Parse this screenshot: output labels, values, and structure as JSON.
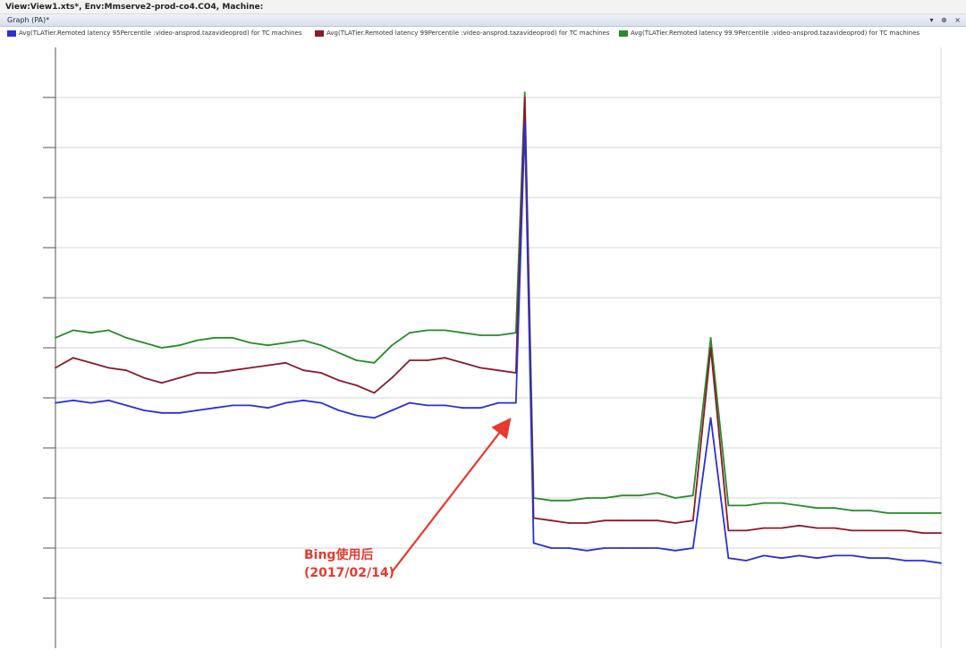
{
  "window": {
    "title": "View:View1.xts*,  Env:Mmserve2-prod-co4.CO4, Machine:",
    "panel_title": "Graph (PA)*",
    "panel_controls": [
      "▾",
      "⊕",
      "×"
    ]
  },
  "colors": {
    "p95": "#2b2fd6",
    "p99": "#8b1a2a",
    "p999": "#2a8a2a",
    "arrow": "#e53a2f",
    "grid": "#d6d6d6",
    "axis": "#555555"
  },
  "chart_data": {
    "type": "line",
    "title": "",
    "xlabel": "",
    "ylabel": "",
    "grid": true,
    "legend_position": "top",
    "x": [
      0,
      2,
      4,
      6,
      8,
      10,
      12,
      14,
      16,
      18,
      20,
      22,
      24,
      26,
      28,
      30,
      32,
      34,
      36,
      38,
      40,
      42,
      44,
      46,
      48,
      50,
      52,
      53,
      54,
      56,
      58,
      60,
      62,
      64,
      66,
      68,
      70,
      72,
      74,
      76,
      78,
      80,
      82,
      84,
      86,
      88,
      90,
      92,
      94,
      96,
      98,
      100
    ],
    "ylim": [
      0,
      12
    ],
    "series": [
      {
        "name": "Avg(TLATier.Remoted latency 95Percentile :video-ansprod.tazavideoprod) for TC machines",
        "values": [
          4.9,
          4.95,
          4.9,
          4.95,
          4.85,
          4.75,
          4.7,
          4.7,
          4.75,
          4.8,
          4.85,
          4.85,
          4.8,
          4.9,
          4.95,
          4.9,
          4.75,
          4.65,
          4.6,
          4.75,
          4.9,
          4.85,
          4.85,
          4.8,
          4.8,
          4.9,
          4.9,
          10.5,
          2.1,
          2.0,
          2.0,
          1.95,
          2.0,
          2.0,
          2.0,
          2.0,
          1.95,
          2.0,
          4.6,
          1.8,
          1.75,
          1.85,
          1.8,
          1.85,
          1.8,
          1.85,
          1.85,
          1.8,
          1.8,
          1.75,
          1.75,
          1.7
        ]
      },
      {
        "name": "Avg(TLATier.Remoted latency 99Percentile :video-ansprod.tazavideoprod) for TC machines",
        "values": [
          5.6,
          5.8,
          5.7,
          5.6,
          5.55,
          5.4,
          5.3,
          5.4,
          5.5,
          5.5,
          5.55,
          5.6,
          5.65,
          5.7,
          5.55,
          5.5,
          5.35,
          5.25,
          5.1,
          5.4,
          5.75,
          5.75,
          5.8,
          5.7,
          5.6,
          5.55,
          5.5,
          11.0,
          2.6,
          2.55,
          2.5,
          2.5,
          2.55,
          2.55,
          2.55,
          2.55,
          2.5,
          2.55,
          6.0,
          2.35,
          2.35,
          2.4,
          2.4,
          2.45,
          2.4,
          2.4,
          2.35,
          2.35,
          2.35,
          2.35,
          2.3,
          2.3
        ]
      },
      {
        "name": "Avg(TLATier.Remoted latency 99.9Percentile :video-ansprod.tazavideoprod) for TC machines",
        "values": [
          6.2,
          6.35,
          6.3,
          6.35,
          6.2,
          6.1,
          6.0,
          6.05,
          6.15,
          6.2,
          6.2,
          6.1,
          6.05,
          6.1,
          6.15,
          6.05,
          5.9,
          5.75,
          5.7,
          6.05,
          6.3,
          6.35,
          6.35,
          6.3,
          6.25,
          6.25,
          6.3,
          11.1,
          3.0,
          2.95,
          2.95,
          3.0,
          3.0,
          3.05,
          3.05,
          3.1,
          3.0,
          3.05,
          6.2,
          2.85,
          2.85,
          2.9,
          2.9,
          2.85,
          2.8,
          2.8,
          2.75,
          2.75,
          2.7,
          2.7,
          2.7,
          2.7
        ]
      }
    ],
    "annotations": [
      {
        "text": "Bing使用后",
        "target_x": 52
      },
      {
        "text": "(2017/02/14)",
        "target_x": 52
      }
    ]
  }
}
